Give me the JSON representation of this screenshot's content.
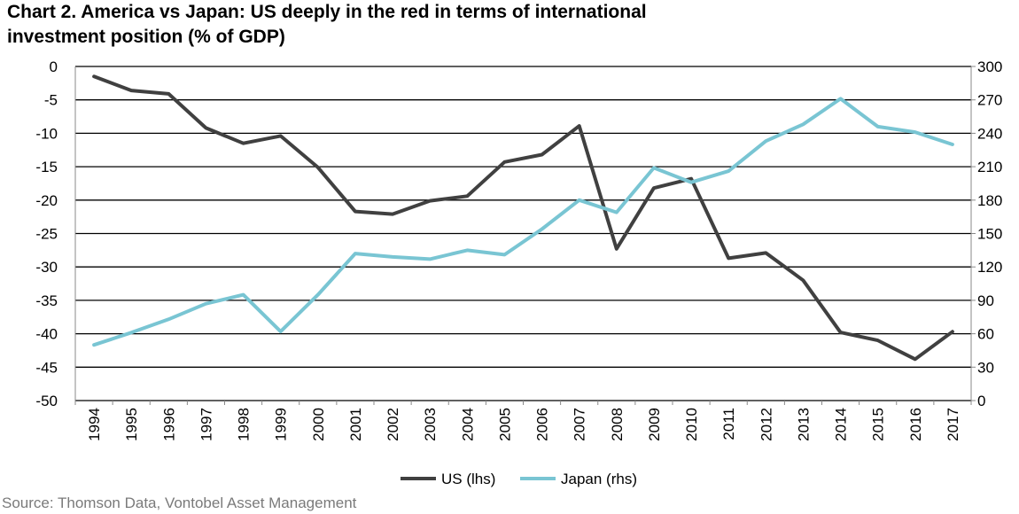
{
  "title_line1": "Chart 2. America vs Japan: US deeply in the red in terms of international",
  "title_line2": "investment position (% of GDP)",
  "source": "Source: Thomson Data, Vontobel Asset Management",
  "chart_data": {
    "type": "line",
    "x": [
      "1994",
      "1995",
      "1996",
      "1997",
      "1998",
      "1999",
      "2000",
      "2001",
      "2002",
      "2003",
      "2004",
      "2005",
      "2006",
      "2007",
      "2008",
      "2009",
      "2010",
      "2011",
      "2012",
      "2013",
      "2014",
      "2015",
      "2016",
      "2017"
    ],
    "y_left": {
      "ticks": [
        0,
        -5,
        -10,
        -15,
        -20,
        -25,
        -30,
        -35,
        -40,
        -45,
        -50
      ],
      "lim": [
        -50,
        0
      ]
    },
    "y_right": {
      "ticks": [
        300,
        270,
        240,
        210,
        180,
        150,
        120,
        90,
        60,
        30,
        0
      ],
      "lim": [
        0,
        300
      ]
    },
    "grid": true,
    "legend_position": "bottom-center",
    "series": [
      {
        "name": "US (lhs)",
        "axis": "left",
        "color": "#404040",
        "values": [
          -1.5,
          -3.6,
          -4.1,
          -9.2,
          -11.5,
          -10.4,
          -15.1,
          -21.7,
          -22.1,
          -20.1,
          -19.4,
          -14.3,
          -13.2,
          -8.9,
          -27.3,
          -18.2,
          -16.8,
          -28.7,
          -27.9,
          -32.0,
          -39.8,
          -41.0,
          -43.8,
          -39.7
        ]
      },
      {
        "name": "Japan (rhs)",
        "axis": "right",
        "color": "#79c5d3",
        "values": [
          50,
          61,
          73,
          87,
          95,
          62,
          95,
          132,
          129,
          127,
          135,
          131,
          154,
          180,
          169,
          209,
          196,
          206,
          233,
          248,
          271,
          246,
          241,
          230
        ]
      }
    ]
  }
}
